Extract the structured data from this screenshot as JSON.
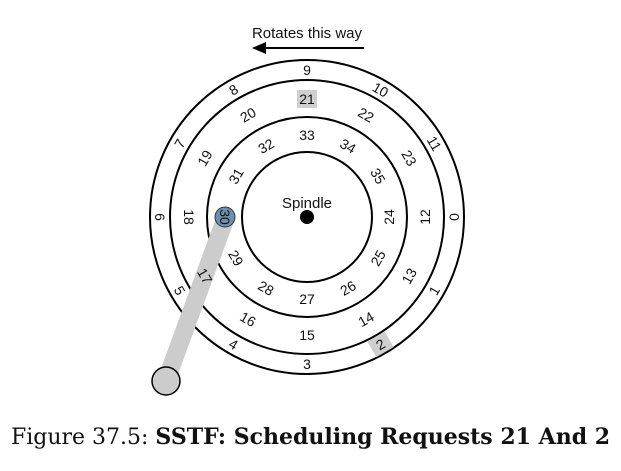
{
  "rotation_label": "Rotates this way",
  "spindle_label": "Spindle",
  "caption": {
    "prefix": "Figure 37.5:",
    "title": "SSTF: Scheduling Requests 21 And 2"
  },
  "head_sector": "30",
  "highlighted_sectors": [
    "21",
    "2"
  ],
  "tracks": {
    "outer": [
      "0",
      "1",
      "2",
      "3",
      "4",
      "5",
      "6",
      "7",
      "8",
      "9",
      "10",
      "11"
    ],
    "middle": [
      "12",
      "13",
      "14",
      "15",
      "16",
      "17",
      "18",
      "19",
      "20",
      "21",
      "22",
      "23"
    ],
    "inner": [
      "24",
      "25",
      "26",
      "27",
      "28",
      "29",
      "30",
      "31",
      "32",
      "33",
      "34",
      "35"
    ]
  },
  "colors": {
    "highlight": "#cfcfcf",
    "arm": "#cccccc",
    "head": "#6f8fb0",
    "line": "#000000"
  }
}
